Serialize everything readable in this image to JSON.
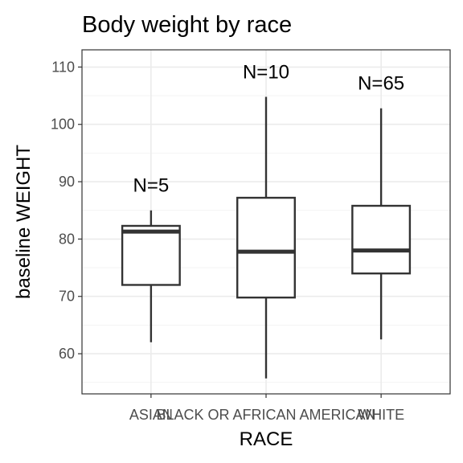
{
  "chart_data": {
    "type": "box",
    "title": "Body weight by race",
    "xlabel": "RACE",
    "ylabel": "baseline WEIGHT",
    "ylim": [
      53,
      113
    ],
    "y_ticks": [
      60,
      70,
      80,
      90,
      100,
      110
    ],
    "grid": true,
    "categories": [
      "ASIAN",
      "BLACK OR AFRICAN AMERICAN",
      "WHITE"
    ],
    "boxes": [
      {
        "category": "ASIAN",
        "whisker_low": 62,
        "q1": 72,
        "median": 81.3,
        "q3": 82.3,
        "whisker_high": 85,
        "n_label": "N=5",
        "n_label_y": 89.5
      },
      {
        "category": "BLACK OR AFRICAN AMERICAN",
        "whisker_low": 55.7,
        "q1": 69.8,
        "median": 77.8,
        "q3": 87.2,
        "whisker_high": 104.8,
        "n_label": "N=10",
        "n_label_y": 109.3
      },
      {
        "category": "WHITE",
        "whisker_low": 62.5,
        "q1": 74,
        "median": 78,
        "q3": 85.8,
        "whisker_high": 102.8,
        "n_label": "N=65",
        "n_label_y": 107.3
      }
    ]
  }
}
